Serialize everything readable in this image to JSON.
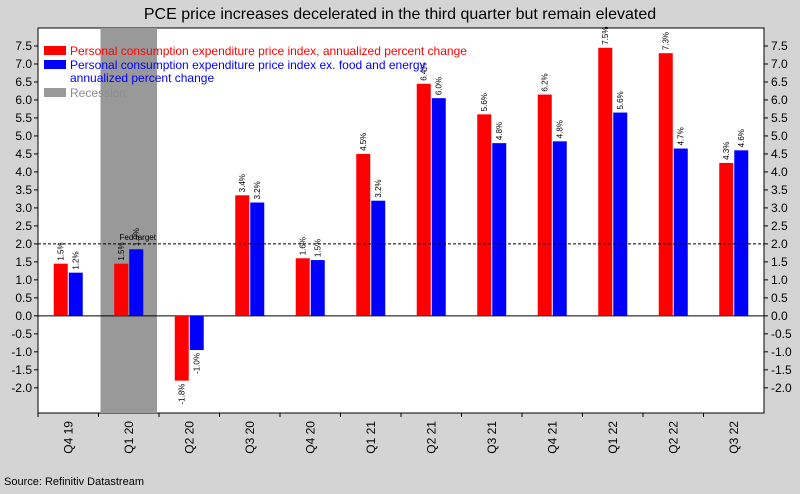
{
  "title": "PCE price increases decelerated in the third quarter but remain elevated",
  "source": "Source: Refinitiv Datastream",
  "chart_data": {
    "type": "bar",
    "categories": [
      "Q4 19",
      "Q1 20",
      "Q2 20",
      "Q3 20",
      "Q4 20",
      "Q1 21",
      "Q2 21",
      "Q3 21",
      "Q4 21",
      "Q1 22",
      "Q2 22",
      "Q3 22"
    ],
    "series": [
      {
        "name": "Personal consumption expenditure price index, annualized percent change",
        "color": "#ff0000",
        "values": [
          1.45,
          1.45,
          -1.8,
          3.35,
          1.6,
          4.5,
          6.45,
          5.6,
          6.15,
          7.45,
          7.3,
          4.25
        ],
        "labels": [
          "1.5%",
          "1.5%",
          "-1.8%",
          "3.4%",
          "1.6%",
          "4.5%",
          "6.4%",
          "5.6%",
          "6.2%",
          "7.5%",
          "7.3%",
          "4.3%"
        ]
      },
      {
        "name": "Personal consumption expenditure price index ex. food and energy, annualized percent change",
        "color": "#0000ff",
        "values": [
          1.2,
          1.85,
          -0.95,
          3.15,
          1.55,
          3.2,
          6.05,
          4.8,
          4.85,
          5.65,
          4.65,
          4.6
        ],
        "labels": [
          "1.2%",
          "1.9%",
          "-1.0%",
          "3.2%",
          "1.5%",
          "3.2%",
          "6.0%",
          "4.8%",
          "4.8%",
          "5.6%",
          "4.7%",
          "4.6%"
        ]
      }
    ],
    "recession": {
      "label": "Recession",
      "category": "Q1 20",
      "color": "#999999"
    },
    "reference_line": {
      "label": "Fed target",
      "value": 2.0
    },
    "ylim": [
      -2.7,
      8.0
    ],
    "yticks": [
      "7.5",
      "7.0",
      "6.5",
      "6.0",
      "5.5",
      "5.0",
      "4.5",
      "4.0",
      "3.5",
      "3.0",
      "2.5",
      "2.0",
      "1.5",
      "1.0",
      "0.5",
      "0.0",
      "-0.5",
      "-1.0",
      "-1.5",
      "-2.0"
    ],
    "legend_position": "top-left",
    "grid": false
  }
}
